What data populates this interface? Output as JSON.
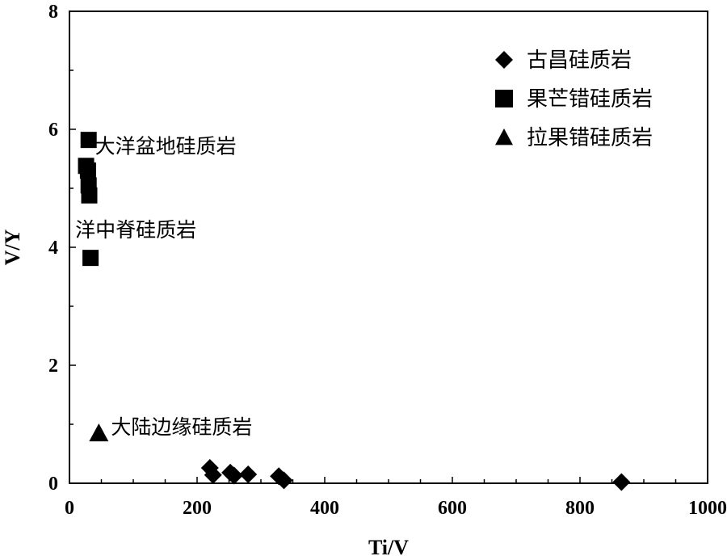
{
  "chart_data": {
    "type": "scatter",
    "xlabel": "Ti/V",
    "ylabel": "V/Y",
    "xlim": [
      0,
      1000
    ],
    "ylim": [
      0,
      8
    ],
    "x_ticks": [
      "0",
      "200",
      "400",
      "600",
      "800",
      "1000"
    ],
    "y_ticks": [
      "0",
      "2",
      "4",
      "6",
      "8"
    ],
    "grid": false,
    "legend_position": "top-right",
    "series": [
      {
        "name": "古昌硅质岩",
        "marker": "diamond",
        "color": "#000000",
        "points": [
          {
            "x": 220,
            "y": 0.26
          },
          {
            "x": 225,
            "y": 0.14
          },
          {
            "x": 252,
            "y": 0.18
          },
          {
            "x": 258,
            "y": 0.13
          },
          {
            "x": 280,
            "y": 0.15
          },
          {
            "x": 328,
            "y": 0.12
          },
          {
            "x": 336,
            "y": 0.05
          },
          {
            "x": 865,
            "y": 0.02
          }
        ]
      },
      {
        "name": "果芒错硅质岩",
        "marker": "square",
        "color": "#000000",
        "points": [
          {
            "x": 30,
            "y": 5.82
          },
          {
            "x": 26,
            "y": 5.38
          },
          {
            "x": 29,
            "y": 5.3
          },
          {
            "x": 30,
            "y": 5.05
          },
          {
            "x": 31,
            "y": 4.88
          },
          {
            "x": 33,
            "y": 3.82
          }
        ]
      },
      {
        "name": "拉果错硅质岩",
        "marker": "triangle",
        "color": "#000000",
        "points": []
      }
    ],
    "annotations": [
      {
        "text": "大洋盆地硅质岩",
        "x": 40,
        "y": 5.72,
        "marker": null
      },
      {
        "text": "洋中脊硅质岩",
        "x": 9,
        "y": 4.3,
        "marker": null
      },
      {
        "text": "大陆边缘硅质岩",
        "x": 65,
        "y": 0.96,
        "marker": "triangle",
        "marker_x": 46,
        "marker_y": 0.85
      }
    ]
  }
}
